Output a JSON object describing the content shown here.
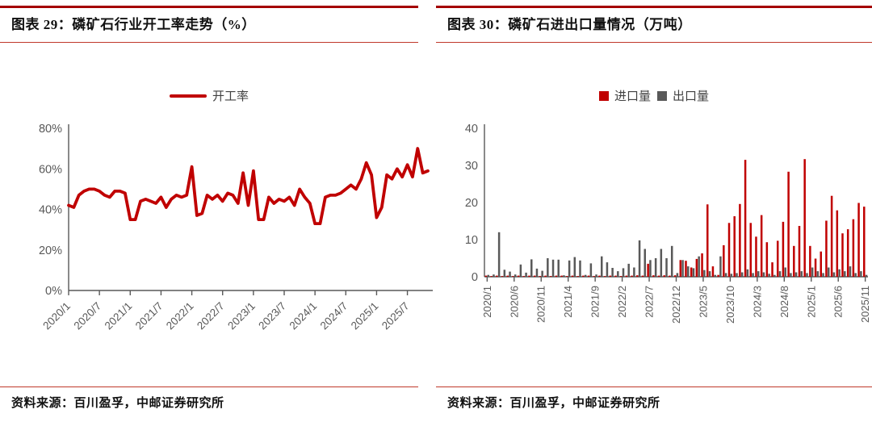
{
  "colors": {
    "accent_red": "#c00000",
    "bar_gray": "#595959",
    "rule_red_thick": "#a40000",
    "rule_red_thin": "#c0392b",
    "axis_gray": "#595959"
  },
  "figures": [
    {
      "title": "图表 29：磷矿石行业开工率走势（%）",
      "source": "资料来源：百川盈孚，中邮证券研究所",
      "legend": [
        {
          "label": "开工率",
          "color": "#c00000",
          "type": "line"
        }
      ],
      "chart_data": {
        "type": "line",
        "title": "磷矿石行业开工率走势",
        "xlabel": "",
        "ylabel": "开工率 (%)",
        "ylim": [
          0,
          80
        ],
        "ytick_values": [
          0,
          20,
          40,
          60,
          80
        ],
        "ytick_labels": [
          "0%",
          "20%",
          "40%",
          "60%",
          "80%"
        ],
        "x_tick_labels": [
          "2020/1",
          "2020/7",
          "2021/1",
          "2021/7",
          "2022/1",
          "2022/7",
          "2023/1",
          "2023/7",
          "2024/1",
          "2024/7",
          "2025/1",
          "2025/7"
        ],
        "x": [
          "2020/1",
          "2020/2",
          "2020/3",
          "2020/4",
          "2020/5",
          "2020/6",
          "2020/7",
          "2020/8",
          "2020/9",
          "2020/10",
          "2020/11",
          "2020/12",
          "2021/1",
          "2021/2",
          "2021/3",
          "2021/4",
          "2021/5",
          "2021/6",
          "2021/7",
          "2021/8",
          "2021/9",
          "2021/10",
          "2021/11",
          "2021/12",
          "2022/1",
          "2022/2",
          "2022/3",
          "2022/4",
          "2022/5",
          "2022/6",
          "2022/7",
          "2022/8",
          "2022/9",
          "2022/10",
          "2022/11",
          "2022/12",
          "2023/1",
          "2023/2",
          "2023/3",
          "2023/4",
          "2023/5",
          "2023/6",
          "2023/7",
          "2023/8",
          "2023/9",
          "2023/10",
          "2023/11",
          "2023/12",
          "2024/1",
          "2024/2",
          "2024/3",
          "2024/4",
          "2024/5",
          "2024/6",
          "2024/7",
          "2024/8",
          "2024/9",
          "2024/10",
          "2024/11",
          "2024/12",
          "2025/1",
          "2025/2",
          "2025/3",
          "2025/4",
          "2025/5",
          "2025/6",
          "2025/7",
          "2025/8",
          "2025/9",
          "2025/10",
          "2025/11"
        ],
        "series": [
          {
            "name": "开工率",
            "color": "#c00000",
            "values": [
              42,
              41,
              47,
              49,
              50,
              50,
              49,
              47,
              46,
              49,
              49,
              48,
              35,
              35,
              44,
              45,
              44,
              43,
              46,
              41,
              45,
              47,
              46,
              47,
              61,
              37,
              38,
              47,
              45,
              47,
              44,
              48,
              47,
              43,
              58,
              42,
              59,
              35,
              35,
              46,
              43,
              45,
              44,
              46,
              42,
              50,
              46,
              43,
              33,
              33,
              46,
              47,
              47,
              48,
              50,
              52,
              50,
              55,
              63,
              57,
              36,
              41,
              57,
              55,
              60,
              56,
              62,
              56,
              70,
              58,
              59
            ]
          }
        ],
        "grid": false,
        "legend_position": "top-center"
      }
    },
    {
      "title": "图表 30：磷矿石进出口量情况（万吨）",
      "source": "资料来源：百川盈孚，中邮证券研究所",
      "legend": [
        {
          "label": "进口量",
          "color": "#c00000",
          "type": "square"
        },
        {
          "label": "出口量",
          "color": "#595959",
          "type": "square"
        }
      ],
      "chart_data": {
        "type": "bar",
        "title": "磷矿石进出口量情况",
        "xlabel": "",
        "ylabel": "万吨",
        "ylim": [
          0,
          40
        ],
        "ytick_values": [
          0,
          10,
          20,
          30,
          40
        ],
        "ytick_labels": [
          "0",
          "10",
          "20",
          "30",
          "40"
        ],
        "x_tick_labels": [
          "2020/1",
          "2020/6",
          "2020/11",
          "2021/4",
          "2021/9",
          "2022/2",
          "2022/7",
          "2022/12",
          "2023/5",
          "2023/10",
          "2024/3",
          "2024/8",
          "2025/1",
          "2025/6",
          "2025/11"
        ],
        "categories": [
          "2020/1",
          "2020/2",
          "2020/3",
          "2020/4",
          "2020/5",
          "2020/6",
          "2020/7",
          "2020/8",
          "2020/9",
          "2020/10",
          "2020/11",
          "2020/12",
          "2021/1",
          "2021/2",
          "2021/3",
          "2021/4",
          "2021/5",
          "2021/6",
          "2021/7",
          "2021/8",
          "2021/9",
          "2021/10",
          "2021/11",
          "2021/12",
          "2022/1",
          "2022/2",
          "2022/3",
          "2022/4",
          "2022/5",
          "2022/6",
          "2022/7",
          "2022/8",
          "2022/9",
          "2022/10",
          "2022/11",
          "2022/12",
          "2023/1",
          "2023/2",
          "2023/3",
          "2023/4",
          "2023/5",
          "2023/6",
          "2023/7",
          "2023/8",
          "2023/9",
          "2023/10",
          "2023/11",
          "2023/12",
          "2024/1",
          "2024/2",
          "2024/3",
          "2024/4",
          "2024/5",
          "2024/6",
          "2024/7",
          "2024/8",
          "2024/9",
          "2024/10",
          "2024/11",
          "2024/12",
          "2025/1",
          "2025/2",
          "2025/3",
          "2025/4",
          "2025/5",
          "2025/6",
          "2025/7",
          "2025/8",
          "2025/9",
          "2025/10",
          "2025/11"
        ],
        "series": [
          {
            "name": "进口量",
            "color": "#c00000",
            "values": [
              0.3,
              0.2,
              0.3,
              0.2,
              0.3,
              0.2,
              0.3,
              0.2,
              0.3,
              0.3,
              0.2,
              0.3,
              0.2,
              0.3,
              0.3,
              0.2,
              0.3,
              0.2,
              0.3,
              0.3,
              0.2,
              0.3,
              0.2,
              0.3,
              0.3,
              0.2,
              0.3,
              0.3,
              0.4,
              0.3,
              3.5,
              0.4,
              0.3,
              0.4,
              0.3,
              0.4,
              4.5,
              4.3,
              2.5,
              4.8,
              6.3,
              19.5,
              2.8,
              0.5,
              8.5,
              14.5,
              16.3,
              19.6,
              31.5,
              14.5,
              10.8,
              16.6,
              9.3,
              3.9,
              9.7,
              14.8,
              28.3,
              8.3,
              13.7,
              31.7,
              8.3,
              4.9,
              6.8,
              15.1,
              21.8,
              17.9,
              11.7,
              12.8,
              15.5,
              19.9,
              18.9
            ]
          },
          {
            "name": "出口量",
            "color": "#595959",
            "values": [
              0.5,
              0.6,
              12.0,
              1.9,
              1.4,
              0.6,
              3.3,
              1.1,
              4.7,
              2.2,
              1.6,
              5.0,
              4.6,
              4.6,
              0.4,
              4.4,
              5.3,
              4.4,
              0.5,
              3.6,
              0.6,
              5.5,
              3.9,
              2.4,
              1.5,
              2.3,
              3.5,
              2.5,
              9.8,
              7.5,
              4.5,
              5.0,
              7.5,
              5.0,
              8.3,
              1.0,
              4.5,
              2.8,
              2.3,
              5.5,
              1.8,
              1.5,
              0.5,
              5.5,
              1.0,
              0.8,
              1.0,
              1.2,
              2.0,
              1.0,
              1.5,
              1.2,
              0.8,
              0.5,
              1.5,
              2.5,
              1.0,
              1.2,
              1.5,
              1.0,
              2.5,
              1.5,
              1.0,
              2.5,
              1.2,
              2.0,
              1.5,
              2.8,
              1.0,
              1.5,
              0.5
            ]
          }
        ],
        "grid": false,
        "legend_position": "top-center"
      }
    }
  ]
}
